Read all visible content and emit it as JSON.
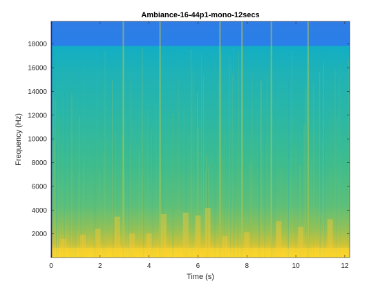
{
  "chart_data": {
    "type": "heatmap",
    "title": "Ambiance-16-44p1-mono-12secs",
    "xlabel": "Time (s)",
    "ylabel": "Frequency (Hz)",
    "xlim": [
      0,
      12.2
    ],
    "ylim": [
      0,
      19900
    ],
    "xticks": [
      0,
      2,
      4,
      6,
      8,
      10,
      12
    ],
    "yticks": [
      2000,
      4000,
      6000,
      8000,
      10000,
      12000,
      14000,
      16000,
      18000
    ],
    "xtick_labels": [
      "0",
      "2",
      "4",
      "6",
      "8",
      "10",
      "12"
    ],
    "ytick_labels": [
      "2000",
      "4000",
      "6000",
      "8000",
      "10000",
      "12000",
      "14000",
      "16000",
      "18000"
    ],
    "grid": false,
    "colormap": "parula",
    "colors": {
      "low": "#2a7fe8",
      "mid_low": "#1aa6d8",
      "mid": "#2bb7a6",
      "mid_high": "#5cbf7a",
      "high": "#c9c23a",
      "peak": "#f9d92a"
    },
    "frequency_bands": [
      {
        "from_hz": 0,
        "to_hz": 1000,
        "level": 0.92
      },
      {
        "from_hz": 1000,
        "to_hz": 2000,
        "level": 0.78
      },
      {
        "from_hz": 2000,
        "to_hz": 4000,
        "level": 0.64
      },
      {
        "from_hz": 4000,
        "to_hz": 8000,
        "level": 0.52
      },
      {
        "from_hz": 8000,
        "to_hz": 14000,
        "level": 0.44
      },
      {
        "from_hz": 14000,
        "to_hz": 16000,
        "level": 0.37
      },
      {
        "from_hz": 16000,
        "to_hz": 17800,
        "level": 0.31
      },
      {
        "from_hz": 17800,
        "to_hz": 19900,
        "level": 0.12
      }
    ],
    "transient_events_s": [
      2.95,
      4.45,
      6.9,
      7.8,
      9.0,
      10.5
    ],
    "low_freq_bursts_s": [
      0.5,
      1.3,
      1.9,
      2.7,
      3.3,
      4.0,
      4.6,
      5.5,
      6.0,
      6.4,
      7.1,
      8.0,
      9.3,
      10.2,
      11.4
    ]
  }
}
